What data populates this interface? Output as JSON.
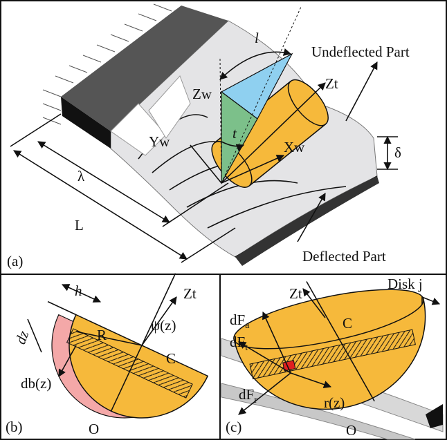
{
  "panel_a": {
    "label": "(a)",
    "l": "l",
    "zw": "Zw",
    "undeflected": "Undeflected Part",
    "zt": "Zt",
    "t": "t",
    "yw": "Yw",
    "xw": "Xw",
    "delta": "δ",
    "lambda": "λ",
    "L": "L",
    "deflected": "Deflected Part"
  },
  "panel_b": {
    "label": "(b)",
    "h": "h",
    "dz": "dz",
    "zt": "Zt",
    "psi": "ψ(z)",
    "R": "R",
    "C": "C",
    "db": "db(z)",
    "O": "O"
  },
  "panel_c": {
    "label": "(c)",
    "zt": "Zt",
    "disk": "Disk j",
    "dfa": {
      "main": "dF",
      "sub": "a"
    },
    "C": "C",
    "dft": {
      "main": "dF",
      "sub": "t"
    },
    "dfr": {
      "main": "dF",
      "sub": "r"
    },
    "rz": "r(z)",
    "O": "O"
  }
}
